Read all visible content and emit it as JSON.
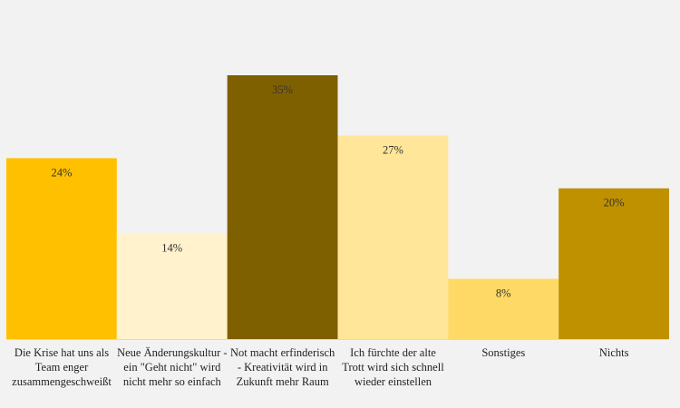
{
  "chart_data": {
    "type": "bar",
    "categories": [
      "Die Krise hat uns als Team enger zusammengeschweißt",
      "Neue Änderungskultur - ein \"Geht nicht\" wird nicht mehr so einfach",
      "Not macht erfinderisch - Kreativität wird in Zukunft mehr Raum",
      "Ich fürchte der alte Trott wird sich schnell wieder einstellen",
      "Sonstiges",
      "Nichts"
    ],
    "values": [
      24,
      14,
      35,
      27,
      8,
      20
    ],
    "data_labels": [
      "24%",
      "14%",
      "35%",
      "27%",
      "8%",
      "20%"
    ],
    "unit": "%",
    "ylim": [
      0,
      40
    ],
    "grid": false,
    "legend": "none",
    "colors": [
      "#ffc000",
      "#fff2cc",
      "#7f6000",
      "#ffe699",
      "#ffd966",
      "#bf9000"
    ]
  }
}
